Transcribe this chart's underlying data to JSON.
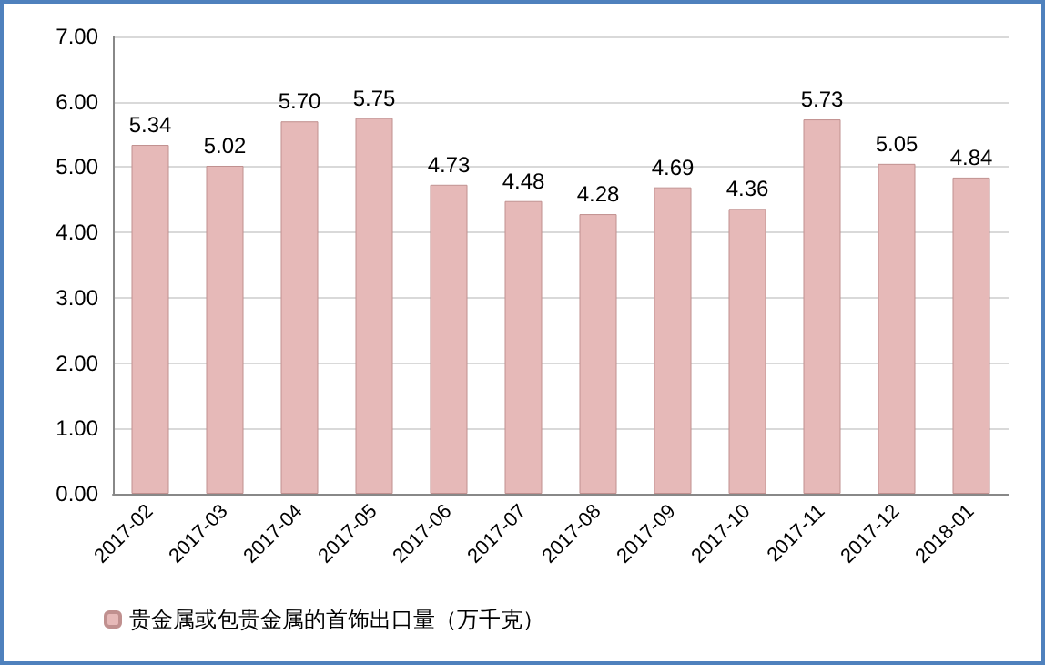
{
  "chart_data": {
    "type": "bar",
    "categories": [
      "2017-02",
      "2017-03",
      "2017-04",
      "2017-05",
      "2017-06",
      "2017-07",
      "2017-08",
      "2017-09",
      "2017-10",
      "2017-11",
      "2017-12",
      "2018-01"
    ],
    "series": [
      {
        "name": "贵金属或包贵金属的首饰出口量（万千克）",
        "color": "#e6b9b8",
        "values": [
          5.34,
          5.02,
          5.7,
          5.75,
          4.73,
          4.48,
          4.28,
          4.69,
          4.36,
          5.73,
          5.05,
          4.84
        ],
        "value_labels": [
          "5.34",
          "5.02",
          "5.70",
          "5.75",
          "4.73",
          "4.48",
          "4.28",
          "4.69",
          "4.36",
          "5.73",
          "5.05",
          "4.84"
        ]
      }
    ],
    "ylim": [
      0,
      7
    ],
    "yticks": [
      {
        "value": 0,
        "label": "0.00"
      },
      {
        "value": 1,
        "label": "1.00"
      },
      {
        "value": 2,
        "label": "2.00"
      },
      {
        "value": 3,
        "label": "3.00"
      },
      {
        "value": 4,
        "label": "4.00"
      },
      {
        "value": 5,
        "label": "5.00"
      },
      {
        "value": 6,
        "label": "6.00"
      },
      {
        "value": 7,
        "label": "7.00"
      }
    ],
    "grid": "y",
    "legend": "bottom left"
  }
}
